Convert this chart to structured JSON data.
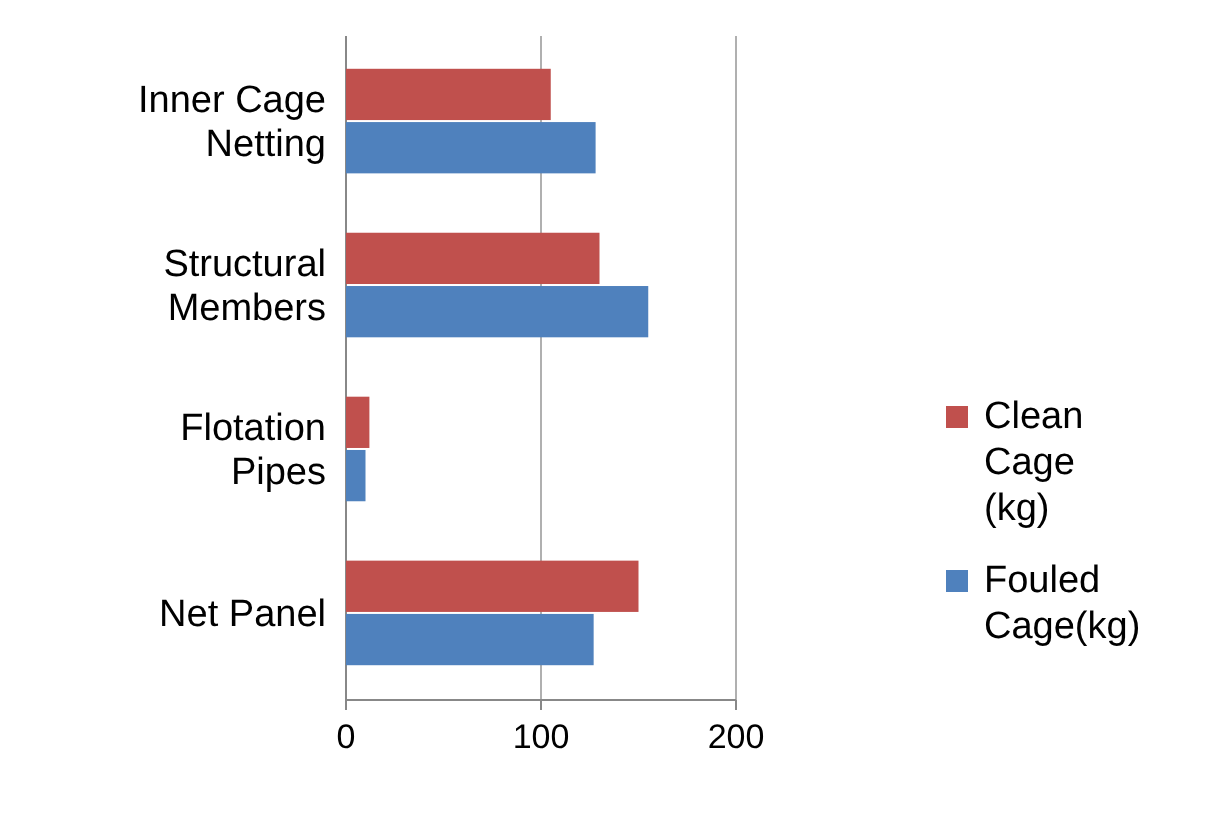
{
  "chart_data": {
    "type": "bar",
    "orientation": "horizontal",
    "categories": [
      "Inner Cage Netting",
      "Structural Members",
      "Flotation Pipes",
      "Net Panel"
    ],
    "series": [
      {
        "name": "Clean Cage (kg)",
        "color": "#c0504d",
        "values": [
          105,
          130,
          12,
          150
        ]
      },
      {
        "name": "Fouled Cage(kg)",
        "color": "#4f81bd",
        "values": [
          128,
          155,
          10,
          127
        ]
      }
    ],
    "xlim": [
      0,
      200
    ],
    "xticks": [
      0,
      100,
      200
    ],
    "grid": "x",
    "legend": "right"
  }
}
